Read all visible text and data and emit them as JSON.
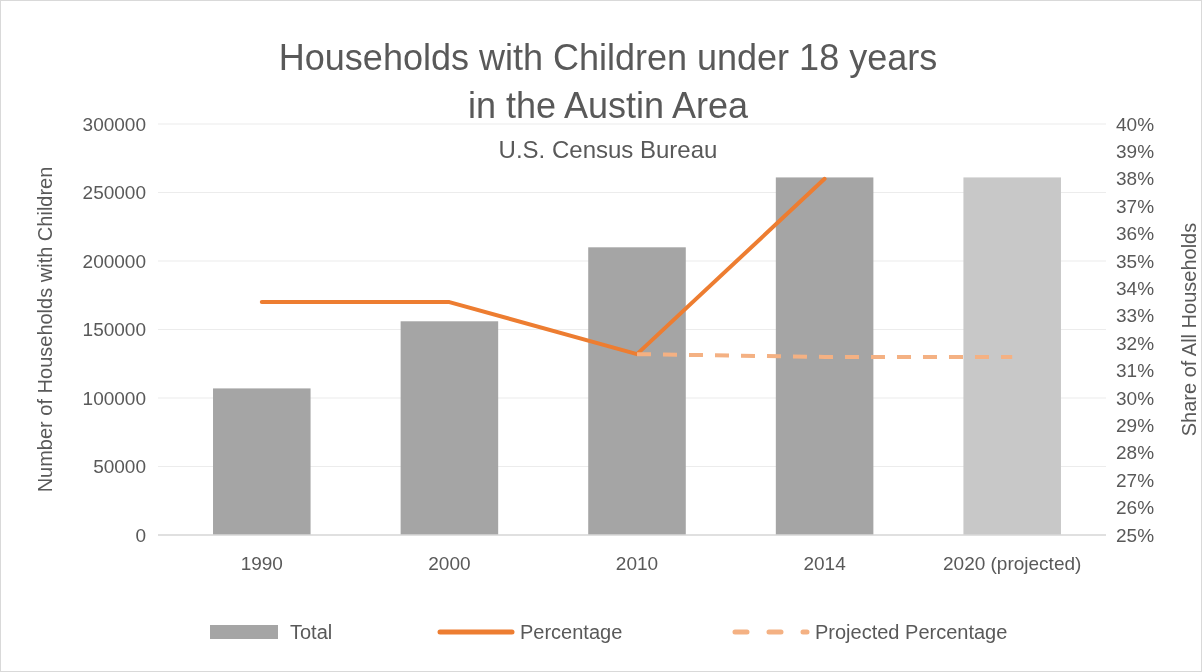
{
  "chart_data": {
    "type": "bar",
    "title": "Households with Children under 18 years in the Austin Area",
    "subtitle": "U.S. Census Bureau",
    "ylabel": "Number of Households with Children",
    "y2label": "Share of All Households",
    "categories": [
      "1990",
      "2000",
      "2010",
      "2014",
      "2020 (projected)"
    ],
    "series": [
      {
        "name": "Total",
        "color": "#a5a5a5",
        "colors": [
          "#a5a5a5",
          "#a5a5a5",
          "#a5a5a5",
          "#a5a5a5",
          "#c8c8c8"
        ],
        "values": [
          107000,
          156000,
          210000,
          261000,
          261000
        ]
      },
      {
        "name": "Percentage",
        "type": "line",
        "axis": "y2",
        "color": "#ed7d31",
        "line_style": "solid",
        "values": [
          33.5,
          33.5,
          31.6,
          38,
          null
        ]
      },
      {
        "name": "Projected Percentage",
        "type": "line",
        "axis": "y2",
        "color": "#f4b183",
        "line_style": "dashed",
        "values": [
          null,
          null,
          31.6,
          31.5,
          31.5
        ]
      }
    ],
    "ylim": [
      0,
      300000
    ],
    "yticks": [
      0,
      50000,
      100000,
      150000,
      200000,
      250000,
      300000
    ],
    "y2lim": [
      25,
      40
    ],
    "y2ticks": [
      {
        "value": 25,
        "label": "25%"
      },
      {
        "value": 26,
        "label": "26%"
      },
      {
        "value": 27,
        "label": "27%"
      },
      {
        "value": 28,
        "label": "28%"
      },
      {
        "value": 29,
        "label": "29%"
      },
      {
        "value": 30,
        "label": "30%"
      },
      {
        "value": 31,
        "label": "31%"
      },
      {
        "value": 32,
        "label": "32%"
      },
      {
        "value": 33,
        "label": "33%"
      },
      {
        "value": 34,
        "label": "34%"
      },
      {
        "value": 35,
        "label": "35%"
      },
      {
        "value": 36,
        "label": "36%"
      },
      {
        "value": 37,
        "label": "37%"
      },
      {
        "value": 38,
        "label": "38%"
      },
      {
        "value": 39,
        "label": "39%"
      },
      {
        "value": 40,
        "label": "40%"
      }
    ],
    "grid": "y",
    "legend": "bottom"
  }
}
